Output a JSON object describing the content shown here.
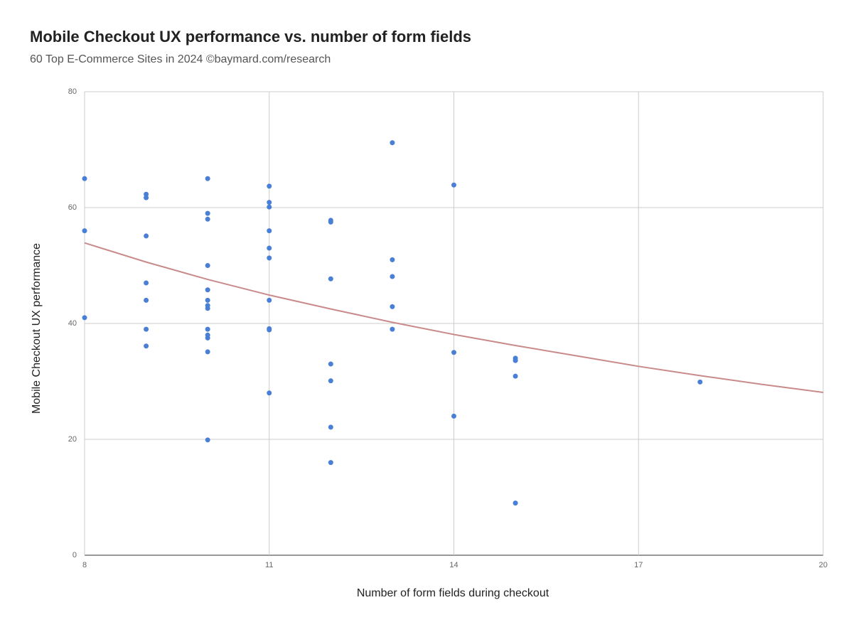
{
  "chart_data": {
    "type": "scatter",
    "title": "Mobile Checkout UX performance vs. number of form fields",
    "subtitle": "60 Top E-Commerce Sites in 2024  ©baymard.com/research",
    "x_label": "Number of form fields during checkout",
    "y_label": "Mobile Checkout UX performance",
    "xlim": [
      8,
      20
    ],
    "ylim": [
      0,
      80
    ],
    "xticks": [
      8,
      11,
      14,
      17,
      20
    ],
    "yticks": [
      0,
      20,
      40,
      60,
      80
    ],
    "grid": true,
    "series": [
      {
        "color": "#4a7fd6",
        "x": [
          8,
          8,
          8,
          9,
          9,
          9,
          9,
          9,
          9,
          9,
          10,
          10,
          10,
          10,
          10,
          10,
          10,
          10,
          10,
          10,
          10,
          10,
          10,
          11,
          11,
          11,
          11,
          11,
          11,
          11,
          11,
          11,
          11,
          12,
          12,
          12,
          12,
          12,
          12,
          12,
          13,
          13,
          13,
          13,
          13,
          14,
          14,
          14,
          15,
          15,
          15,
          15,
          18
        ],
        "values": [
          65,
          56,
          41,
          62.3,
          61.7,
          55.1,
          47,
          44,
          39,
          36.1,
          65,
          59,
          58,
          50,
          45.8,
          44,
          43.1,
          42.6,
          39,
          38,
          37.5,
          35.1,
          19.9,
          63.7,
          60.9,
          60.1,
          56,
          53,
          51.3,
          44,
          39.1,
          38.9,
          28,
          57.8,
          57.5,
          47.7,
          33,
          30.1,
          22.1,
          16,
          71.2,
          51,
          48.1,
          42.9,
          39,
          63.9,
          35,
          24,
          34,
          33.6,
          30.9,
          9,
          29.9
        ]
      }
    ],
    "trendline": {
      "color": "#c98a8a",
      "x": [
        8,
        9,
        10,
        11,
        12,
        13,
        14,
        15,
        16,
        17,
        18,
        19,
        20
      ],
      "values": [
        53.9,
        50.6,
        47.6,
        44.9,
        42.5,
        40.2,
        38.1,
        36.2,
        34.4,
        32.6,
        31,
        29.5,
        28.1
      ]
    }
  }
}
